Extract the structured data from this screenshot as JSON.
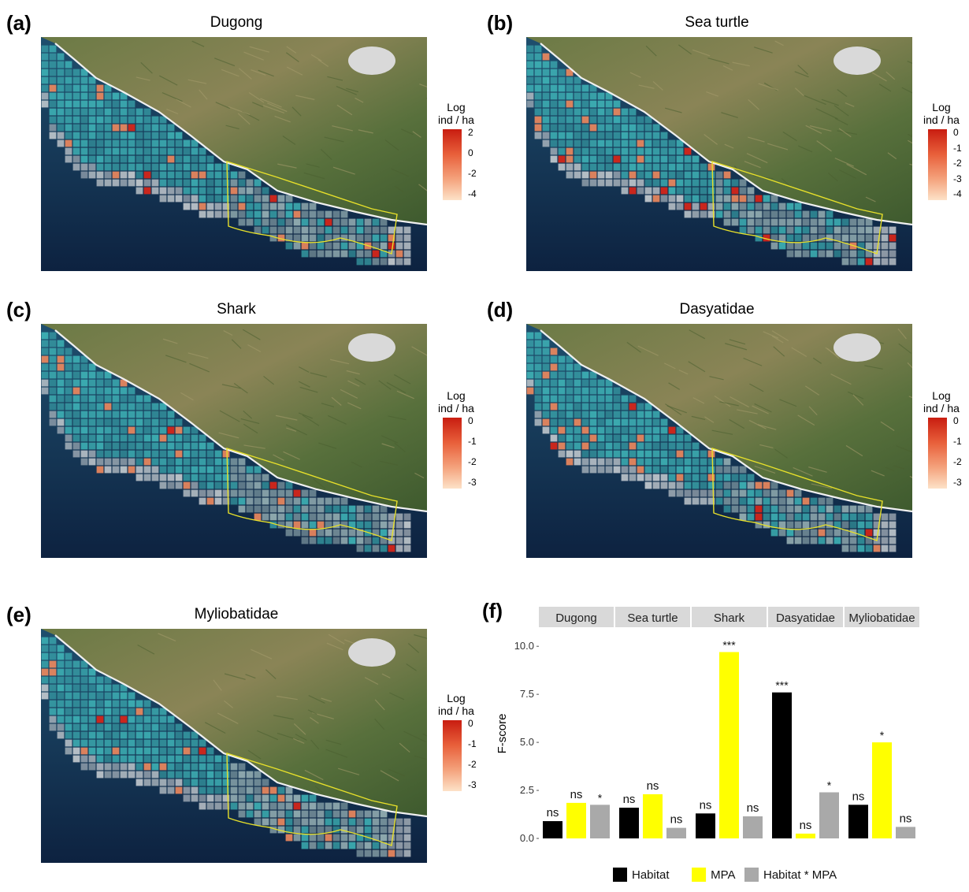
{
  "colors": {
    "habitat": "#000000",
    "mpa": "#ffff00",
    "interaction": "#a9a9a9",
    "cell_base": "#3fb5b8",
    "cell_hot": "#d3261a",
    "mpa_outline": "#e7e02a"
  },
  "panels": [
    {
      "letter": "(a)",
      "title": "Dugong",
      "icon": "dugong-silhouette-icon",
      "legend": {
        "title_line1": "Log",
        "title_line2": "ind / ha",
        "ticks": [
          "2",
          "0",
          "-2",
          "-4"
        ]
      }
    },
    {
      "letter": "(b)",
      "title": "Sea turtle",
      "icon": "sea-turtle-silhouette-icon",
      "legend": {
        "title_line1": "Log",
        "title_line2": "ind / ha",
        "ticks": [
          "0",
          "-1",
          "-2",
          "-3",
          "-4"
        ]
      }
    },
    {
      "letter": "(c)",
      "title": "Shark",
      "icon": "shark-silhouette-icon",
      "legend": {
        "title_line1": "Log",
        "title_line2": "ind / ha",
        "ticks": [
          "0",
          "-1",
          "-2",
          "-3"
        ]
      }
    },
    {
      "letter": "(d)",
      "title": "Dasyatidae",
      "icon": "stingray-silhouette-icon",
      "legend": {
        "title_line1": "Log",
        "title_line2": "ind / ha",
        "ticks": [
          "0",
          "-1",
          "-2",
          "-3"
        ]
      }
    },
    {
      "letter": "(e)",
      "title": "Myliobatidae",
      "icon": "manta-ray-silhouette-icon",
      "legend": {
        "title_line1": "Log",
        "title_line2": "ind / ha",
        "ticks": [
          "0",
          "-1",
          "-2",
          "-3"
        ]
      }
    }
  ],
  "chart_f": {
    "letter": "(f)"
  },
  "chart_data": {
    "type": "bar",
    "facets": [
      "Dugong",
      "Sea turtle",
      "Shark",
      "Dasyatidae",
      "Myliobatidae"
    ],
    "ylabel": "F-score",
    "ylim": [
      0,
      10.5
    ],
    "yticks": [
      "0.0",
      "2.5",
      "5.0",
      "7.5",
      "10.0"
    ],
    "grid": false,
    "legend_position": "bottom",
    "series": [
      {
        "name": "Habitat",
        "values": [
          0.9,
          1.6,
          1.3,
          7.6,
          1.75
        ],
        "labels": [
          "ns",
          "ns",
          "ns",
          "***",
          "ns"
        ]
      },
      {
        "name": "MPA",
        "values": [
          1.85,
          2.3,
          9.7,
          0.25,
          5.0
        ],
        "labels": [
          "ns",
          "ns",
          "***",
          "ns",
          "*"
        ]
      },
      {
        "name": "Habitat * MPA",
        "values": [
          1.75,
          0.55,
          1.15,
          2.4,
          0.6
        ],
        "labels": [
          "*",
          "ns",
          "ns",
          "*",
          "ns"
        ]
      }
    ]
  }
}
